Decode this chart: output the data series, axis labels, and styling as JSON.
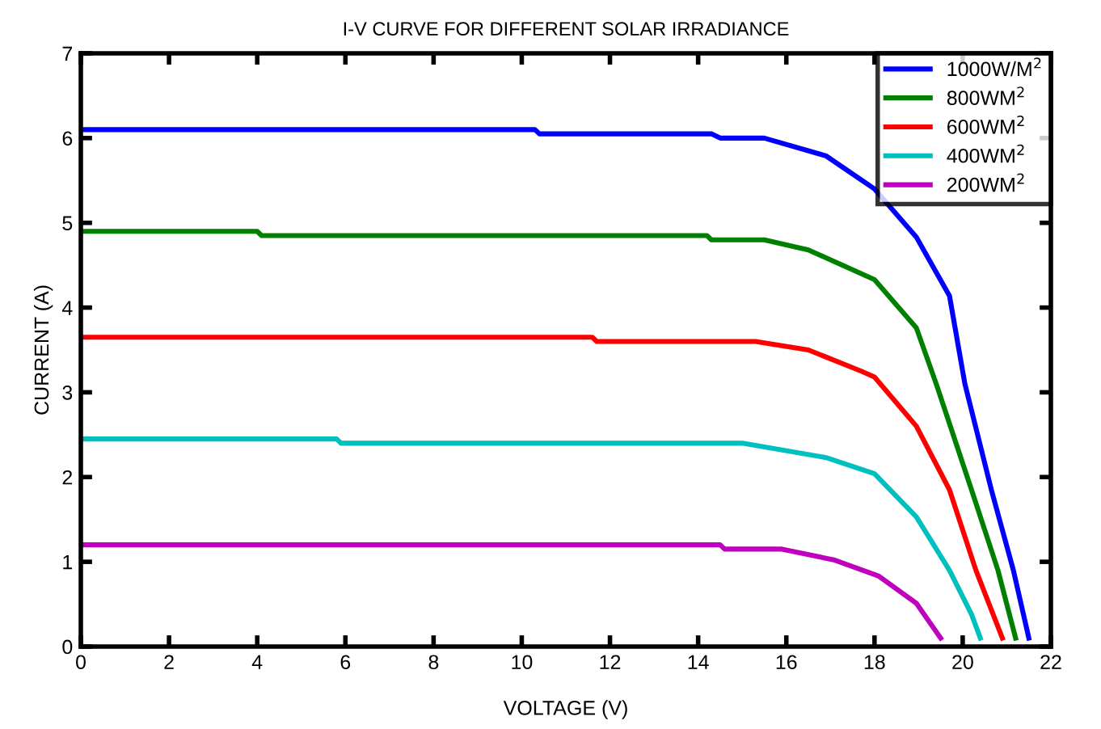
{
  "chart_data": {
    "type": "line",
    "title": "I-V CURVE FOR DIFFERENT SOLAR IRRADIANCE",
    "xlabel": "VOLTAGE (V)",
    "ylabel": "CURRENT (A)",
    "xlim": [
      0,
      22
    ],
    "ylim": [
      0,
      7
    ],
    "xticks": [
      0,
      2,
      4,
      6,
      8,
      10,
      12,
      14,
      16,
      18,
      20,
      22
    ],
    "yticks": [
      0,
      1,
      2,
      3,
      4,
      5,
      6,
      7
    ],
    "grid": false,
    "legend": "top right",
    "marker": "none",
    "line_style": "solid",
    "series": [
      {
        "name": "1000W/M$^{2}$",
        "color": "#0000ff",
        "x": [
          0,
          10.3,
          10.4,
          14.3,
          14.5,
          15.5,
          16.9,
          18.0,
          18.95,
          19.7,
          20.05,
          20.65,
          21.15,
          21.5
        ],
        "values": [
          6.1,
          6.1,
          6.05,
          6.05,
          6.0,
          6.0,
          5.79,
          5.4,
          4.83,
          4.14,
          3.1,
          1.85,
          0.9,
          0.1
        ]
      },
      {
        "name": "800WM$^{2}$",
        "color": "#008000",
        "x": [
          0,
          4.0,
          4.1,
          14.2,
          14.3,
          15.5,
          16.5,
          18.0,
          18.95,
          19.4,
          20.2,
          20.8,
          21.2
        ],
        "values": [
          4.9,
          4.9,
          4.85,
          4.85,
          4.8,
          4.8,
          4.68,
          4.33,
          3.76,
          3.1,
          1.85,
          0.9,
          0.1
        ]
      },
      {
        "name": "600WM$^{2}$",
        "color": "#ff0000",
        "x": [
          0,
          11.6,
          11.7,
          15.3,
          16.5,
          17.7,
          18.0,
          18.95,
          19.7,
          20.3,
          20.9
        ],
        "values": [
          3.65,
          3.65,
          3.6,
          3.6,
          3.5,
          3.25,
          3.18,
          2.6,
          1.85,
          0.9,
          0.1
        ]
      },
      {
        "name": "400WM$^{2}$",
        "color": "#00bfbf",
        "x": [
          0,
          5.8,
          5.9,
          15.0,
          16.9,
          18.0,
          18.95,
          19.7,
          20.2,
          20.4
        ],
        "values": [
          2.45,
          2.45,
          2.4,
          2.4,
          2.23,
          2.04,
          1.53,
          0.9,
          0.38,
          0.1
        ]
      },
      {
        "name": "200WM$^{2}$",
        "color": "#bf00bf",
        "x": [
          0,
          14.5,
          14.6,
          15.9,
          17.1,
          18.1,
          18.95,
          19.5
        ],
        "values": [
          1.2,
          1.2,
          1.15,
          1.15,
          1.02,
          0.83,
          0.51,
          0.1
        ]
      }
    ]
  }
}
